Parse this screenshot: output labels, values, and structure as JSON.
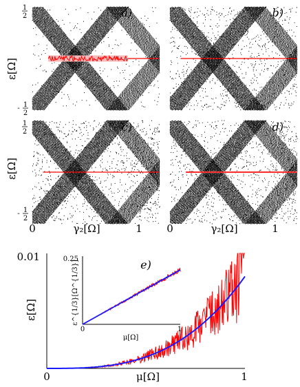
{
  "figure": {
    "panels": [
      {
        "label": "a)",
        "variant": "a"
      },
      {
        "label": "b)",
        "variant": "b"
      },
      {
        "label": "c)",
        "variant": "c"
      },
      {
        "label": "d)",
        "variant": "d"
      }
    ],
    "y_axis_label": "ε[Ω]",
    "x_axis_label": "γ₂[Ω]",
    "y_ticks": {
      "top": "1/2",
      "bottom": "-1/2"
    },
    "x_ticks": [
      "0",
      "1"
    ],
    "bottom_panel": {
      "label": "e)",
      "y_axis_label": "ε[Ω]",
      "x_axis_label": "μ[Ω]",
      "y_tick_top": "0.01",
      "x_ticks": [
        "0",
        "1"
      ],
      "inset": {
        "y_axis_label": "ε^{1/3}[Ω^{1/3}]",
        "x_axis_label": "μ[Ω]",
        "y_tick_top": "0.25",
        "x_ticks": [
          "0",
          "1"
        ]
      }
    },
    "colors": {
      "data": "#000000",
      "red": "#ff0000",
      "pink": "#f7b8b8",
      "blue": "#1a1aff"
    }
  },
  "chart_data": [
    {
      "type": "scatter",
      "panel": "a-d",
      "xlabel": "γ₂[Ω]",
      "ylabel": "ε[Ω]",
      "xlim": [
        0,
        1.2
      ],
      "ylim": [
        -0.5,
        0.5
      ],
      "xticks": [
        0,
        1
      ],
      "yticks": [
        -0.5,
        0.5
      ]
    },
    {
      "type": "line",
      "panel": "e",
      "xlabel": "μ[Ω]",
      "ylabel": "ε[Ω]",
      "xlim": [
        0,
        1
      ],
      "ylim": [
        0,
        0.01
      ],
      "series": [
        {
          "color": "red",
          "x": [
            0,
            0.2,
            0.4,
            0.5,
            0.6,
            0.7,
            0.8,
            0.9,
            1.0
          ],
          "values": [
            0,
            0.0001,
            0.0006,
            0.0011,
            0.0019,
            0.003,
            0.0045,
            0.006,
            0.008
          ]
        },
        {
          "color": "blue",
          "x": [
            0,
            0.2,
            0.4,
            0.5,
            0.6,
            0.7,
            0.8,
            0.9,
            1.0
          ],
          "values": [
            0,
            0.0001,
            0.0006,
            0.0011,
            0.0019,
            0.003,
            0.0045,
            0.006,
            0.008
          ]
        }
      ]
    },
    {
      "type": "line",
      "panel": "e-inset",
      "xlabel": "μ[Ω]",
      "ylabel": "ε^{1/3}[Ω^{1/3}]",
      "xlim": [
        0,
        1
      ],
      "ylim": [
        0,
        0.25
      ],
      "series": [
        {
          "color": "red",
          "x": [
            0,
            0.25,
            0.5,
            0.75,
            1.0
          ],
          "values": [
            0,
            0.05,
            0.1,
            0.15,
            0.2
          ]
        },
        {
          "color": "blue",
          "x": [
            0,
            0.25,
            0.5,
            0.75,
            1.0
          ],
          "values": [
            0,
            0.05,
            0.1,
            0.15,
            0.2
          ]
        }
      ]
    }
  ]
}
